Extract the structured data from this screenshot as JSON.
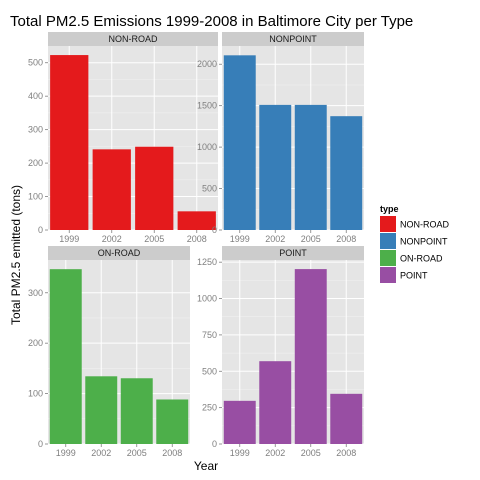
{
  "chart_data": {
    "type": "bar",
    "title": "Total PM2.5 Emissions 1999-2008 in Baltimore City per Type",
    "xlabel": "Year",
    "ylabel": "Total PM2.5 emitted (tons)",
    "categories": [
      "1999",
      "2002",
      "2005",
      "2008"
    ],
    "grid": true,
    "legend": {
      "title": "type",
      "placement": "right",
      "entries": [
        "NON-ROAD",
        "NONPOINT",
        "ON-ROAD",
        "POINT"
      ]
    },
    "panels": [
      {
        "name": "NON-ROAD",
        "color": "#E41A1C",
        "values": [
          522.9,
          241.1,
          248.9,
          55.8
        ],
        "ylim": [
          0,
          550
        ],
        "yticks": [
          0,
          100,
          200,
          300,
          400,
          500
        ]
      },
      {
        "name": "NONPOINT",
        "color": "#377EB8",
        "values": [
          2107.6,
          1509.5,
          1509.5,
          1373.2
        ],
        "ylim": [
          0,
          2220
        ],
        "yticks": [
          0,
          500,
          1000,
          1500,
          2000
        ]
      },
      {
        "name": "ON-ROAD",
        "color": "#4DAF4A",
        "values": [
          346.8,
          134.3,
          130.4,
          88.3
        ],
        "ylim": [
          0,
          365
        ],
        "yticks": [
          0,
          100,
          200,
          300
        ]
      },
      {
        "name": "POINT",
        "color": "#984EA3",
        "values": [
          296.8,
          569.3,
          1202.5,
          344.98
        ],
        "ylim": [
          0,
          1265
        ],
        "yticks": [
          0,
          250,
          500,
          750,
          1000,
          1250
        ]
      }
    ]
  }
}
